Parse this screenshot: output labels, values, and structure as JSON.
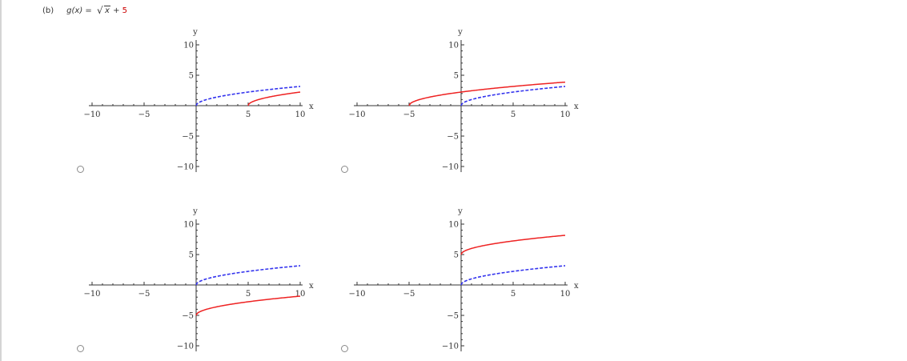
{
  "question": {
    "part_label": "(b)",
    "function_prefix": "g(x) = ",
    "radicand": "x",
    "plus": " + ",
    "constant": "5",
    "accent_color": "#cc0000"
  },
  "options": [
    {
      "id": "option-a",
      "selected": false
    },
    {
      "id": "option-b",
      "selected": false
    },
    {
      "id": "option-c",
      "selected": false
    },
    {
      "id": "option-d",
      "selected": false
    }
  ],
  "chart_data": [
    {
      "type": "line",
      "title": "",
      "xlabel": "x",
      "ylabel": "y",
      "xlim": [
        -10,
        10
      ],
      "ylim": [
        -10,
        10
      ],
      "xticks": [
        -10,
        -5,
        5,
        10
      ],
      "yticks": [
        10,
        5,
        -5,
        -10
      ],
      "grid": false,
      "series": [
        {
          "name": "sqrt(x)",
          "color": "#3333ee",
          "dashed": true,
          "fn": "sqrt",
          "shift_x": 0,
          "shift_y": 0,
          "x_start": 0,
          "x_end": 10
        },
        {
          "name": "sqrt(x-5)",
          "color": "#ee2222",
          "dashed": false,
          "fn": "sqrt",
          "shift_x": 5,
          "shift_y": 0,
          "x_start": 5,
          "x_end": 10
        }
      ]
    },
    {
      "type": "line",
      "title": "",
      "xlabel": "x",
      "ylabel": "y",
      "xlim": [
        -10,
        10
      ],
      "ylim": [
        -10,
        10
      ],
      "xticks": [
        -10,
        -5,
        5,
        10
      ],
      "yticks": [
        10,
        5,
        -5,
        -10
      ],
      "grid": false,
      "series": [
        {
          "name": "sqrt(x)",
          "color": "#3333ee",
          "dashed": true,
          "fn": "sqrt",
          "shift_x": 0,
          "shift_y": 0,
          "x_start": 0,
          "x_end": 10
        },
        {
          "name": "sqrt(x+5)",
          "color": "#ee2222",
          "dashed": false,
          "fn": "sqrt",
          "shift_x": -5,
          "shift_y": 0,
          "x_start": -5,
          "x_end": 10
        }
      ]
    },
    {
      "type": "line",
      "title": "",
      "xlabel": "x",
      "ylabel": "y",
      "xlim": [
        -10,
        10
      ],
      "ylim": [
        -10,
        10
      ],
      "xticks": [
        -10,
        -5,
        5,
        10
      ],
      "yticks": [
        10,
        5,
        -5,
        -10
      ],
      "grid": false,
      "series": [
        {
          "name": "sqrt(x)",
          "color": "#3333ee",
          "dashed": true,
          "fn": "sqrt",
          "shift_x": 0,
          "shift_y": 0,
          "x_start": 0,
          "x_end": 10
        },
        {
          "name": "sqrt(x)-5",
          "color": "#ee2222",
          "dashed": false,
          "fn": "sqrt",
          "shift_x": 0,
          "shift_y": -5,
          "x_start": 0,
          "x_end": 10
        }
      ]
    },
    {
      "type": "line",
      "title": "",
      "xlabel": "x",
      "ylabel": "y",
      "xlim": [
        -10,
        10
      ],
      "ylim": [
        -10,
        10
      ],
      "xticks": [
        -10,
        -5,
        5,
        10
      ],
      "yticks": [
        10,
        5,
        -5,
        -10
      ],
      "grid": false,
      "series": [
        {
          "name": "sqrt(x)",
          "color": "#3333ee",
          "dashed": true,
          "fn": "sqrt",
          "shift_x": 0,
          "shift_y": 0,
          "x_start": 0,
          "x_end": 10
        },
        {
          "name": "sqrt(x)+5",
          "color": "#ee2222",
          "dashed": false,
          "fn": "sqrt",
          "shift_x": 0,
          "shift_y": 5,
          "x_start": 0,
          "x_end": 10
        }
      ]
    }
  ]
}
